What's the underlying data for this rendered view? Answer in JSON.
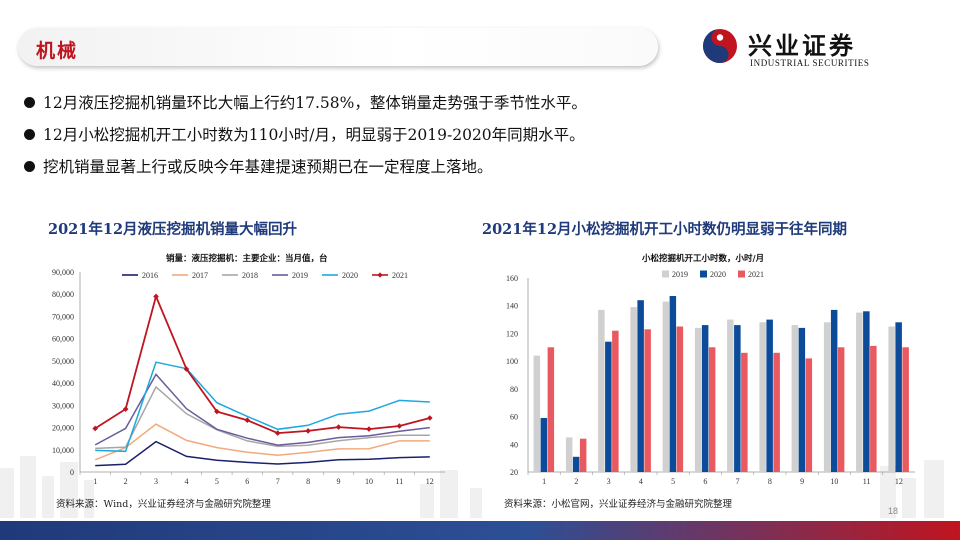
{
  "header": {
    "section_title": "机械",
    "logo_cn": "兴业证券",
    "logo_en": "INDUSTRIAL SECURITIES"
  },
  "bullets": [
    "12月液压挖掘机销量环比大幅上行约17.58%，整体销量走势强于季节性水平。",
    "12月小松挖掘机开工小时数为110小时/月，明显弱于2019-2020年同期水平。",
    "挖机销量显著上行或反映今年基建提速预期已在一定程度上落地。"
  ],
  "page_number": "18",
  "colors": {
    "brand_red": "#c0141f",
    "brand_blue": "#1f3a7a"
  },
  "chart_data": [
    {
      "type": "line",
      "title": "2021年12月液压挖掘机销量大幅回升",
      "subtitle": "销量：液压挖掘机：主要企业：当月值，台",
      "source": "资料来源：Wind，兴业证券经济与金融研究院整理",
      "x": [
        1,
        2,
        3,
        4,
        5,
        6,
        7,
        8,
        9,
        10,
        11,
        12
      ],
      "x_tick_labels": [
        "1",
        "2",
        "3",
        "4",
        "5",
        "6",
        "7",
        "8",
        "9",
        "10",
        "11",
        "12"
      ],
      "ylim": [
        0,
        90000
      ],
      "y_ticks": [
        0,
        10000,
        20000,
        30000,
        40000,
        50000,
        60000,
        70000,
        80000,
        90000
      ],
      "y_tick_labels": [
        "0",
        "10,000",
        "20,000",
        "30,000",
        "40,000",
        "50,000",
        "60,000",
        "70,000",
        "80,000",
        "90,000"
      ],
      "legend_position": "top",
      "series": [
        {
          "name": "2016",
          "color": "#1a1f6e",
          "values": [
            2900,
            3500,
            13700,
            7000,
            5300,
            4300,
            3600,
            4300,
            5500,
            5700,
            6500,
            6800
          ]
        },
        {
          "name": "2017",
          "color": "#f2a97c",
          "values": [
            5500,
            11000,
            21500,
            14200,
            11000,
            8900,
            7500,
            8800,
            10400,
            10500,
            14000,
            14000
          ]
        },
        {
          "name": "2018",
          "color": "#a6a6a6",
          "values": [
            10600,
            11200,
            38300,
            26200,
            19000,
            14000,
            11500,
            12000,
            14100,
            15500,
            16500,
            16500
          ]
        },
        {
          "name": "2019",
          "color": "#6b5b9a",
          "values": [
            12200,
            19600,
            43900,
            28500,
            19200,
            15200,
            12100,
            13300,
            15500,
            16300,
            18300,
            20000
          ]
        },
        {
          "name": "2020",
          "color": "#1ea8e0",
          "values": [
            9700,
            9300,
            49400,
            46500,
            31200,
            25000,
            19200,
            21000,
            26000,
            27400,
            32200,
            31500
          ]
        },
        {
          "name": "2021",
          "color": "#c0141f",
          "values": [
            19600,
            28300,
            79000,
            46300,
            27200,
            23300,
            17500,
            18500,
            20200,
            19300,
            20700,
            24300
          ]
        }
      ]
    },
    {
      "type": "bar",
      "title": "2021年12月小松挖掘机开工小时数仍明显弱于往年同期",
      "subtitle": "小松挖掘机开工小时数，小时/月",
      "source": "资料来源：小松官网，兴业证券经济与金融研究院整理",
      "categories": [
        "1",
        "2",
        "3",
        "4",
        "5",
        "6",
        "7",
        "8",
        "9",
        "10",
        "11",
        "12"
      ],
      "ylim": [
        20,
        160
      ],
      "y_ticks": [
        20,
        40,
        60,
        80,
        100,
        120,
        140,
        160
      ],
      "y_tick_labels": [
        "20",
        "40",
        "60",
        "80",
        "100",
        "120",
        "140",
        "160"
      ],
      "legend_position": "top",
      "series": [
        {
          "name": "2019",
          "color": "#d0d0d0",
          "values": [
            104,
            45,
            137,
            139,
            143,
            124,
            130,
            128,
            126,
            128,
            135,
            125
          ]
        },
        {
          "name": "2020",
          "color": "#0c4a9a",
          "values": [
            59,
            31,
            114,
            144,
            147,
            126,
            126,
            130,
            124,
            137,
            136,
            128
          ]
        },
        {
          "name": "2021",
          "color": "#e85a5f",
          "values": [
            110,
            44,
            122,
            123,
            125,
            110,
            106,
            106,
            102,
            110,
            111,
            110
          ]
        }
      ]
    }
  ]
}
